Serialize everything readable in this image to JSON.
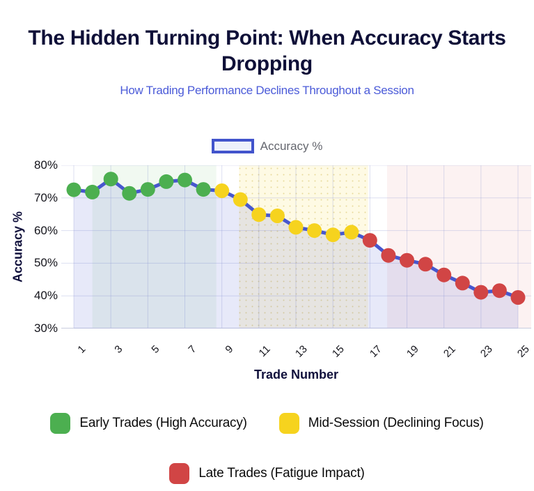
{
  "header": {
    "title": "The Hidden Turning Point: When Accuracy Starts Dropping",
    "subtitle": "How Trading Performance Declines Throughout a Session"
  },
  "top_legend": {
    "label": "Accuracy %"
  },
  "chart_data": {
    "type": "line",
    "title": "The Hidden Turning Point: When Accuracy Starts Dropping",
    "subtitle": "How Trading Performance Declines Throughout a Session",
    "series_label": "Accuracy %",
    "xlabel": "Trade Number",
    "ylabel": "Accuracy %",
    "ylim": [
      30,
      80
    ],
    "grid": true,
    "legend_position": "top",
    "x": [
      1,
      2,
      3,
      4,
      5,
      6,
      7,
      8,
      9,
      10,
      11,
      12,
      13,
      14,
      15,
      16,
      17,
      18,
      19,
      20,
      21,
      22,
      23,
      24,
      25
    ],
    "values": [
      72.5,
      71.8,
      75.8,
      71.4,
      72.6,
      75.0,
      75.5,
      72.6,
      72.2,
      69.5,
      64.9,
      64.5,
      61.0,
      60.0,
      58.7,
      59.5,
      57.0,
      52.4,
      50.9,
      49.7,
      46.4,
      43.9,
      41.1,
      41.6,
      39.5
    ],
    "xticks": [
      1,
      3,
      5,
      7,
      9,
      11,
      13,
      15,
      17,
      19,
      21,
      23,
      25
    ],
    "yticks": [
      80,
      70,
      60,
      50,
      40,
      30
    ],
    "ytick_suffix": "%",
    "line_color": "#4757ce",
    "area_fill": "rgba(71,88,206,0.13)",
    "grid_color": "rgba(140,150,210,0.30)",
    "axis_line_color": "#c9cddf",
    "phases": [
      {
        "label": "Early Trades (High Accuracy)",
        "color": "#4caf50",
        "trades": [
          1,
          8
        ],
        "band": [
          2.0,
          8.7
        ],
        "band_fill": "rgba(76,175,80,0.08)"
      },
      {
        "label": "Mid-Session (Declining Focus)",
        "color": "#f6d31e",
        "trades": [
          9,
          16
        ],
        "band": [
          9.93,
          16.9
        ],
        "band_fill": "rgba(246,211,30,0.12)",
        "band_pattern": "dots"
      },
      {
        "label": "Late Trades (Fatigue Impact)",
        "color": "#d14545",
        "trades": [
          17,
          25
        ],
        "band": [
          17.93,
          26.5
        ],
        "band_fill": "rgba(209,69,69,0.07)"
      }
    ]
  }
}
